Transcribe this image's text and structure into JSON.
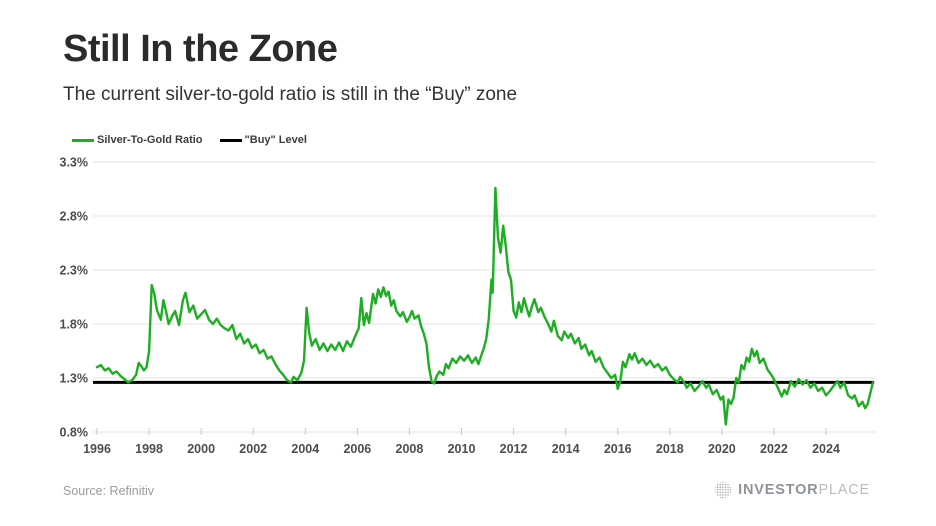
{
  "header": {
    "title": "Still In the Zone",
    "subtitle": "The current silver-to-gold ratio is still in the “Buy” zone"
  },
  "footer": {
    "source": "Source: Refinitiv",
    "logo_bold": "INVESTOR",
    "logo_light": "PLACE"
  },
  "colors": {
    "series_green": "#1ead23",
    "buy_black": "#000000",
    "grid": "#e3e3e3",
    "tick": "#c9c9c9",
    "axis_text": "#4d4d4d"
  },
  "chart_data": {
    "type": "line",
    "title": "Still In the Zone",
    "subtitle": "The current silver-to-gold ratio is still in the “Buy” zone",
    "xlabel": "",
    "ylabel": "",
    "grid": true,
    "legend_position": "top-left",
    "x_range": [
      1996,
      2026
    ],
    "y_range": [
      0.8,
      3.3
    ],
    "x_ticks": [
      1996,
      1998,
      2000,
      2002,
      2004,
      2006,
      2008,
      2010,
      2012,
      2014,
      2016,
      2018,
      2020,
      2022,
      2024
    ],
    "y_ticks": [
      3.3,
      2.8,
      2.3,
      1.8,
      1.3,
      0.8
    ],
    "y_tick_labels": [
      "3.3%",
      "2.8%",
      "2.3%",
      "1.8%",
      "1.3%",
      "0.8%"
    ],
    "series": [
      {
        "name": "Silver-To-Gold Ratio",
        "type": "line",
        "color": "#1ead23",
        "points": [
          [
            1996.0,
            1.4
          ],
          [
            1996.15,
            1.42
          ],
          [
            1996.3,
            1.37
          ],
          [
            1996.45,
            1.39
          ],
          [
            1996.6,
            1.34
          ],
          [
            1996.75,
            1.36
          ],
          [
            1996.9,
            1.32
          ],
          [
            1997.05,
            1.29
          ],
          [
            1997.2,
            1.26
          ],
          [
            1997.35,
            1.28
          ],
          [
            1997.5,
            1.33
          ],
          [
            1997.6,
            1.44
          ],
          [
            1997.7,
            1.41
          ],
          [
            1997.8,
            1.37
          ],
          [
            1997.9,
            1.4
          ],
          [
            1998.0,
            1.55
          ],
          [
            1998.1,
            2.16
          ],
          [
            1998.2,
            2.08
          ],
          [
            1998.3,
            1.93
          ],
          [
            1998.45,
            1.84
          ],
          [
            1998.55,
            2.02
          ],
          [
            1998.65,
            1.92
          ],
          [
            1998.75,
            1.8
          ],
          [
            1998.9,
            1.88
          ],
          [
            1999.0,
            1.92
          ],
          [
            1999.15,
            1.79
          ],
          [
            1999.3,
            2.02
          ],
          [
            1999.4,
            2.09
          ],
          [
            1999.55,
            1.91
          ],
          [
            1999.7,
            1.97
          ],
          [
            1999.85,
            1.85
          ],
          [
            2000.0,
            1.89
          ],
          [
            2000.15,
            1.93
          ],
          [
            2000.3,
            1.84
          ],
          [
            2000.45,
            1.8
          ],
          [
            2000.6,
            1.85
          ],
          [
            2000.75,
            1.79
          ],
          [
            2000.9,
            1.76
          ],
          [
            2001.05,
            1.74
          ],
          [
            2001.2,
            1.79
          ],
          [
            2001.35,
            1.66
          ],
          [
            2001.5,
            1.71
          ],
          [
            2001.65,
            1.62
          ],
          [
            2001.8,
            1.66
          ],
          [
            2001.95,
            1.58
          ],
          [
            2002.1,
            1.61
          ],
          [
            2002.25,
            1.53
          ],
          [
            2002.4,
            1.56
          ],
          [
            2002.55,
            1.48
          ],
          [
            2002.7,
            1.5
          ],
          [
            2002.85,
            1.43
          ],
          [
            2003.0,
            1.37
          ],
          [
            2003.15,
            1.33
          ],
          [
            2003.3,
            1.28
          ],
          [
            2003.45,
            1.26
          ],
          [
            2003.55,
            1.31
          ],
          [
            2003.7,
            1.28
          ],
          [
            2003.85,
            1.35
          ],
          [
            2003.95,
            1.46
          ],
          [
            2004.05,
            1.95
          ],
          [
            2004.15,
            1.72
          ],
          [
            2004.25,
            1.6
          ],
          [
            2004.4,
            1.66
          ],
          [
            2004.55,
            1.56
          ],
          [
            2004.7,
            1.62
          ],
          [
            2004.85,
            1.55
          ],
          [
            2005.0,
            1.61
          ],
          [
            2005.15,
            1.56
          ],
          [
            2005.3,
            1.63
          ],
          [
            2005.45,
            1.55
          ],
          [
            2005.6,
            1.64
          ],
          [
            2005.75,
            1.59
          ],
          [
            2005.9,
            1.68
          ],
          [
            2006.05,
            1.76
          ],
          [
            2006.15,
            2.04
          ],
          [
            2006.25,
            1.79
          ],
          [
            2006.35,
            1.9
          ],
          [
            2006.45,
            1.81
          ],
          [
            2006.6,
            2.08
          ],
          [
            2006.7,
            1.99
          ],
          [
            2006.8,
            2.12
          ],
          [
            2006.9,
            2.05
          ],
          [
            2007.0,
            2.14
          ],
          [
            2007.1,
            2.06
          ],
          [
            2007.2,
            2.1
          ],
          [
            2007.3,
            1.97
          ],
          [
            2007.4,
            2.02
          ],
          [
            2007.5,
            1.92
          ],
          [
            2007.65,
            1.87
          ],
          [
            2007.75,
            1.91
          ],
          [
            2007.9,
            1.82
          ],
          [
            2008.0,
            1.86
          ],
          [
            2008.1,
            1.92
          ],
          [
            2008.2,
            1.85
          ],
          [
            2008.35,
            1.88
          ],
          [
            2008.45,
            1.78
          ],
          [
            2008.55,
            1.71
          ],
          [
            2008.65,
            1.62
          ],
          [
            2008.75,
            1.4
          ],
          [
            2008.85,
            1.27
          ],
          [
            2008.95,
            1.25
          ],
          [
            2009.05,
            1.32
          ],
          [
            2009.15,
            1.36
          ],
          [
            2009.3,
            1.33
          ],
          [
            2009.4,
            1.43
          ],
          [
            2009.5,
            1.39
          ],
          [
            2009.65,
            1.48
          ],
          [
            2009.8,
            1.44
          ],
          [
            2009.95,
            1.5
          ],
          [
            2010.1,
            1.46
          ],
          [
            2010.25,
            1.51
          ],
          [
            2010.4,
            1.44
          ],
          [
            2010.55,
            1.49
          ],
          [
            2010.65,
            1.43
          ],
          [
            2010.75,
            1.5
          ],
          [
            2010.85,
            1.57
          ],
          [
            2010.95,
            1.66
          ],
          [
            2011.05,
            1.85
          ],
          [
            2011.15,
            2.21
          ],
          [
            2011.2,
            2.09
          ],
          [
            2011.3,
            3.06
          ],
          [
            2011.4,
            2.6
          ],
          [
            2011.5,
            2.46
          ],
          [
            2011.6,
            2.71
          ],
          [
            2011.7,
            2.52
          ],
          [
            2011.8,
            2.28
          ],
          [
            2011.9,
            2.21
          ],
          [
            2012.0,
            1.92
          ],
          [
            2012.1,
            1.86
          ],
          [
            2012.2,
            2.0
          ],
          [
            2012.3,
            1.91
          ],
          [
            2012.4,
            2.04
          ],
          [
            2012.5,
            1.95
          ],
          [
            2012.6,
            1.87
          ],
          [
            2012.7,
            1.96
          ],
          [
            2012.8,
            2.03
          ],
          [
            2012.95,
            1.91
          ],
          [
            2013.05,
            1.95
          ],
          [
            2013.2,
            1.86
          ],
          [
            2013.35,
            1.79
          ],
          [
            2013.45,
            1.73
          ],
          [
            2013.55,
            1.83
          ],
          [
            2013.7,
            1.69
          ],
          [
            2013.85,
            1.65
          ],
          [
            2013.95,
            1.73
          ],
          [
            2014.1,
            1.67
          ],
          [
            2014.2,
            1.71
          ],
          [
            2014.35,
            1.62
          ],
          [
            2014.5,
            1.67
          ],
          [
            2014.6,
            1.57
          ],
          [
            2014.75,
            1.61
          ],
          [
            2014.9,
            1.51
          ],
          [
            2015.0,
            1.55
          ],
          [
            2015.15,
            1.45
          ],
          [
            2015.3,
            1.49
          ],
          [
            2015.45,
            1.4
          ],
          [
            2015.6,
            1.35
          ],
          [
            2015.75,
            1.3
          ],
          [
            2015.9,
            1.33
          ],
          [
            2016.0,
            1.2
          ],
          [
            2016.1,
            1.27
          ],
          [
            2016.2,
            1.45
          ],
          [
            2016.3,
            1.4
          ],
          [
            2016.45,
            1.52
          ],
          [
            2016.55,
            1.47
          ],
          [
            2016.65,
            1.53
          ],
          [
            2016.8,
            1.44
          ],
          [
            2016.95,
            1.48
          ],
          [
            2017.1,
            1.42
          ],
          [
            2017.25,
            1.46
          ],
          [
            2017.4,
            1.4
          ],
          [
            2017.55,
            1.43
          ],
          [
            2017.7,
            1.37
          ],
          [
            2017.85,
            1.4
          ],
          [
            2018.0,
            1.33
          ],
          [
            2018.15,
            1.29
          ],
          [
            2018.3,
            1.26
          ],
          [
            2018.4,
            1.31
          ],
          [
            2018.55,
            1.26
          ],
          [
            2018.65,
            1.21
          ],
          [
            2018.8,
            1.25
          ],
          [
            2018.95,
            1.18
          ],
          [
            2019.1,
            1.22
          ],
          [
            2019.25,
            1.27
          ],
          [
            2019.4,
            1.21
          ],
          [
            2019.5,
            1.24
          ],
          [
            2019.65,
            1.15
          ],
          [
            2019.8,
            1.19
          ],
          [
            2019.95,
            1.1
          ],
          [
            2020.05,
            1.13
          ],
          [
            2020.15,
            0.87
          ],
          [
            2020.25,
            1.1
          ],
          [
            2020.35,
            1.06
          ],
          [
            2020.45,
            1.12
          ],
          [
            2020.55,
            1.3
          ],
          [
            2020.65,
            1.26
          ],
          [
            2020.75,
            1.42
          ],
          [
            2020.85,
            1.38
          ],
          [
            2020.95,
            1.49
          ],
          [
            2021.05,
            1.45
          ],
          [
            2021.15,
            1.57
          ],
          [
            2021.25,
            1.5
          ],
          [
            2021.35,
            1.55
          ],
          [
            2021.45,
            1.44
          ],
          [
            2021.6,
            1.48
          ],
          [
            2021.75,
            1.38
          ],
          [
            2021.9,
            1.33
          ],
          [
            2022.0,
            1.29
          ],
          [
            2022.15,
            1.21
          ],
          [
            2022.3,
            1.13
          ],
          [
            2022.4,
            1.19
          ],
          [
            2022.5,
            1.15
          ],
          [
            2022.65,
            1.27
          ],
          [
            2022.8,
            1.22
          ],
          [
            2022.95,
            1.29
          ],
          [
            2023.1,
            1.24
          ],
          [
            2023.25,
            1.28
          ],
          [
            2023.4,
            1.21
          ],
          [
            2023.55,
            1.25
          ],
          [
            2023.7,
            1.18
          ],
          [
            2023.85,
            1.21
          ],
          [
            2024.0,
            1.14
          ],
          [
            2024.15,
            1.18
          ],
          [
            2024.3,
            1.23
          ],
          [
            2024.45,
            1.27
          ],
          [
            2024.55,
            1.21
          ],
          [
            2024.7,
            1.26
          ],
          [
            2024.85,
            1.14
          ],
          [
            2025.0,
            1.11
          ],
          [
            2025.1,
            1.14
          ],
          [
            2025.25,
            1.04
          ],
          [
            2025.4,
            1.08
          ],
          [
            2025.5,
            1.02
          ],
          [
            2025.6,
            1.06
          ],
          [
            2025.7,
            1.16
          ],
          [
            2025.8,
            1.26
          ]
        ]
      },
      {
        "name": "\"Buy\" Level",
        "type": "hline",
        "color": "#000000",
        "value": 1.26,
        "x_start": 1996,
        "x_end": 2025.85
      }
    ]
  }
}
